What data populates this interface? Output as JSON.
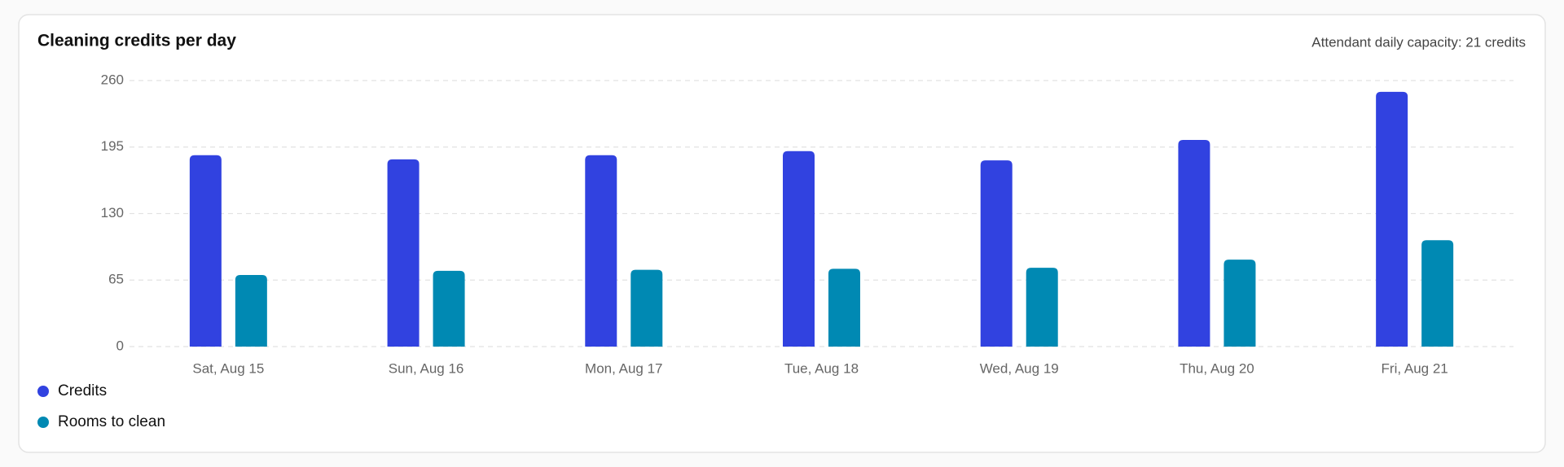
{
  "chart_data": {
    "type": "bar",
    "title": "Cleaning credits per day",
    "annotation": "Attendant daily capacity: 21 credits",
    "categories": [
      "Sat, Aug 15",
      "Sun, Aug 16",
      "Mon, Aug 17",
      "Tue, Aug 18",
      "Wed, Aug 19",
      "Thu, Aug 20",
      "Fri, Aug 21"
    ],
    "series": [
      {
        "name": "Credits",
        "color": "#3142e0",
        "values": [
          187,
          183,
          187,
          191,
          182,
          202,
          249
        ]
      },
      {
        "name": "Rooms to clean",
        "color": "#0089b3",
        "values": [
          70,
          74,
          75,
          76,
          77,
          85,
          104
        ]
      }
    ],
    "ylim": [
      0,
      260
    ],
    "yticks": [
      0,
      65,
      130,
      195,
      260
    ],
    "grid": true,
    "legend": "bottom-left"
  }
}
